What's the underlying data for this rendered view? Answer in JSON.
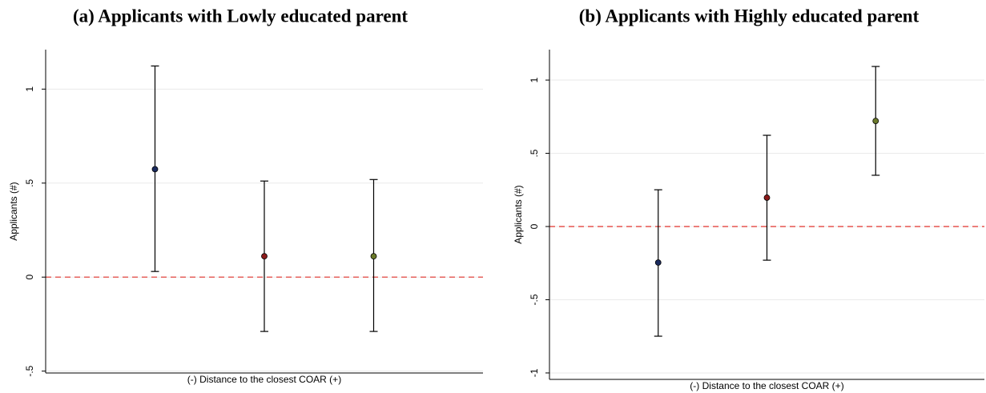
{
  "chart_data": [
    {
      "type": "errorbar",
      "title": "(a) Applicants with Lowly educated parent",
      "xlabel": "(-) Distance to the closest COAR (+)",
      "ylabel": "Applicants (#)",
      "categories": [
        null,
        null,
        null
      ],
      "values": [
        0.574,
        0.111,
        0.111
      ],
      "ci_low": [
        0.03,
        -0.289,
        -0.289
      ],
      "ci_high": [
        1.123,
        0.511,
        0.519
      ],
      "colors": [
        "#1a2a5e",
        "#8b1a1a",
        "#6b7a2a"
      ],
      "ylim": [
        -0.51,
        1.21
      ],
      "yticks": [
        {
          "value": -0.5,
          "label": "-.5"
        },
        0,
        {
          "value": 0.5,
          "label": ".5"
        },
        1
      ],
      "grid": true,
      "reference_line": 0,
      "reference_color": "#e0302a"
    },
    {
      "type": "errorbar",
      "title": "(b) Applicants with Highly educated parent",
      "xlabel": "(-) Distance to the closest COAR (+)",
      "ylabel": "Applicants (#)",
      "categories": [
        null,
        null,
        null
      ],
      "values": [
        -0.246,
        0.197,
        0.721
      ],
      "ci_low": [
        -0.749,
        -0.23,
        0.35
      ],
      "ci_high": [
        0.251,
        0.623,
        1.093
      ],
      "colors": [
        "#1a2a5e",
        "#8b1a1a",
        "#6b7a2a"
      ],
      "ylim": [
        -1.044,
        1.208
      ],
      "yticks": [
        -1,
        {
          "value": -0.5,
          "label": "-.5"
        },
        0,
        {
          "value": 0.5,
          "label": ".5"
        },
        1
      ],
      "grid": true,
      "reference_line": 0,
      "reference_color": "#e0302a"
    }
  ]
}
